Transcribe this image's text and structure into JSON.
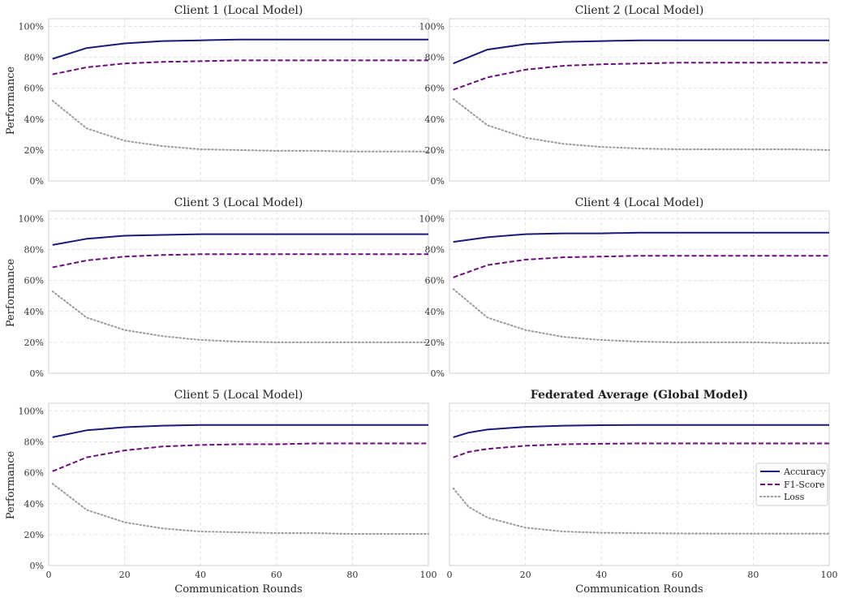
{
  "chart_data": [
    {
      "type": "line",
      "title": "Client 1 (Local Model)",
      "xlabel": "",
      "ylabel": "Performance",
      "xlim": [
        0,
        100
      ],
      "ylim": [
        0,
        1.05
      ],
      "x_ticks": [
        0,
        20,
        40,
        60,
        80,
        100
      ],
      "y_ticks": [
        0,
        0.2,
        0.4,
        0.6,
        0.8,
        1.0
      ],
      "y_tick_labels": [
        "0%",
        "20%",
        "40%",
        "60%",
        "80%",
        "100%"
      ],
      "grid": true,
      "series": [
        {
          "name": "Accuracy",
          "x": [
            1,
            10,
            20,
            30,
            40,
            50,
            60,
            70,
            80,
            90,
            100
          ],
          "values": [
            0.79,
            0.86,
            0.89,
            0.905,
            0.91,
            0.915,
            0.915,
            0.915,
            0.915,
            0.915,
            0.915
          ]
        },
        {
          "name": "F1-Score",
          "x": [
            1,
            10,
            20,
            30,
            40,
            50,
            60,
            70,
            80,
            90,
            100
          ],
          "values": [
            0.69,
            0.735,
            0.76,
            0.77,
            0.775,
            0.78,
            0.78,
            0.78,
            0.78,
            0.78,
            0.78
          ]
        },
        {
          "name": "Loss",
          "x": [
            1,
            10,
            20,
            30,
            40,
            50,
            60,
            70,
            80,
            90,
            100
          ],
          "values": [
            0.52,
            0.34,
            0.26,
            0.225,
            0.205,
            0.2,
            0.195,
            0.195,
            0.19,
            0.19,
            0.19
          ]
        }
      ]
    },
    {
      "type": "line",
      "title": "Client 2 (Local Model)",
      "xlabel": "",
      "ylabel": "",
      "xlim": [
        0,
        100
      ],
      "ylim": [
        0,
        1.05
      ],
      "x_ticks": [
        0,
        20,
        40,
        60,
        80,
        100
      ],
      "y_ticks": [
        0,
        0.2,
        0.4,
        0.6,
        0.8,
        1.0
      ],
      "y_tick_labels": [
        "0%",
        "20%",
        "40%",
        "60%",
        "80%",
        "100%"
      ],
      "grid": true,
      "series": [
        {
          "name": "Accuracy",
          "x": [
            1,
            10,
            20,
            30,
            40,
            50,
            60,
            70,
            80,
            90,
            100
          ],
          "values": [
            0.76,
            0.85,
            0.885,
            0.9,
            0.905,
            0.91,
            0.91,
            0.91,
            0.91,
            0.91,
            0.91
          ]
        },
        {
          "name": "F1-Score",
          "x": [
            1,
            10,
            20,
            30,
            40,
            50,
            60,
            70,
            80,
            90,
            100
          ],
          "values": [
            0.59,
            0.67,
            0.72,
            0.745,
            0.755,
            0.76,
            0.765,
            0.765,
            0.765,
            0.765,
            0.765
          ]
        },
        {
          "name": "Loss",
          "x": [
            1,
            10,
            20,
            30,
            40,
            50,
            60,
            70,
            80,
            90,
            100
          ],
          "values": [
            0.53,
            0.36,
            0.28,
            0.24,
            0.22,
            0.21,
            0.205,
            0.205,
            0.205,
            0.205,
            0.2
          ]
        }
      ]
    },
    {
      "type": "line",
      "title": "Client 3 (Local Model)",
      "xlabel": "",
      "ylabel": "Performance",
      "xlim": [
        0,
        100
      ],
      "ylim": [
        0,
        1.05
      ],
      "x_ticks": [
        0,
        20,
        40,
        60,
        80,
        100
      ],
      "y_ticks": [
        0,
        0.2,
        0.4,
        0.6,
        0.8,
        1.0
      ],
      "y_tick_labels": [
        "0%",
        "20%",
        "40%",
        "60%",
        "80%",
        "100%"
      ],
      "grid": true,
      "series": [
        {
          "name": "Accuracy",
          "x": [
            1,
            10,
            20,
            30,
            40,
            50,
            60,
            70,
            80,
            90,
            100
          ],
          "values": [
            0.83,
            0.87,
            0.89,
            0.895,
            0.9,
            0.9,
            0.9,
            0.9,
            0.9,
            0.9,
            0.9
          ]
        },
        {
          "name": "F1-Score",
          "x": [
            1,
            10,
            20,
            30,
            40,
            50,
            60,
            70,
            80,
            90,
            100
          ],
          "values": [
            0.685,
            0.73,
            0.755,
            0.765,
            0.77,
            0.77,
            0.77,
            0.77,
            0.77,
            0.77,
            0.77
          ]
        },
        {
          "name": "Loss",
          "x": [
            1,
            10,
            20,
            30,
            40,
            50,
            60,
            70,
            80,
            90,
            100
          ],
          "values": [
            0.53,
            0.36,
            0.28,
            0.24,
            0.215,
            0.205,
            0.2,
            0.2,
            0.2,
            0.2,
            0.2
          ]
        }
      ]
    },
    {
      "type": "line",
      "title": "Client 4 (Local Model)",
      "xlabel": "",
      "ylabel": "",
      "xlim": [
        0,
        100
      ],
      "ylim": [
        0,
        1.05
      ],
      "x_ticks": [
        0,
        20,
        40,
        60,
        80,
        100
      ],
      "y_ticks": [
        0,
        0.2,
        0.4,
        0.6,
        0.8,
        1.0
      ],
      "y_tick_labels": [
        "0%",
        "20%",
        "40%",
        "60%",
        "80%",
        "100%"
      ],
      "grid": true,
      "series": [
        {
          "name": "Accuracy",
          "x": [
            1,
            10,
            20,
            30,
            40,
            50,
            60,
            70,
            80,
            90,
            100
          ],
          "values": [
            0.85,
            0.88,
            0.9,
            0.905,
            0.905,
            0.91,
            0.91,
            0.91,
            0.91,
            0.91,
            0.91
          ]
        },
        {
          "name": "F1-Score",
          "x": [
            1,
            10,
            20,
            30,
            40,
            50,
            60,
            70,
            80,
            90,
            100
          ],
          "values": [
            0.62,
            0.7,
            0.735,
            0.75,
            0.755,
            0.76,
            0.76,
            0.76,
            0.76,
            0.76,
            0.76
          ]
        },
        {
          "name": "Loss",
          "x": [
            1,
            10,
            20,
            30,
            40,
            50,
            60,
            70,
            80,
            90,
            100
          ],
          "values": [
            0.545,
            0.36,
            0.28,
            0.235,
            0.215,
            0.205,
            0.2,
            0.2,
            0.2,
            0.195,
            0.195
          ]
        }
      ]
    },
    {
      "type": "line",
      "title": "Client 5 (Local Model)",
      "xlabel": "Communication Rounds",
      "ylabel": "Performance",
      "xlim": [
        0,
        100
      ],
      "ylim": [
        0,
        1.05
      ],
      "x_ticks": [
        0,
        20,
        40,
        60,
        80,
        100
      ],
      "x_tick_labels": [
        "0",
        "20",
        "40",
        "60",
        "80",
        "100"
      ],
      "y_ticks": [
        0,
        0.2,
        0.4,
        0.6,
        0.8,
        1.0
      ],
      "y_tick_labels": [
        "0%",
        "20%",
        "40%",
        "60%",
        "80%",
        "100%"
      ],
      "grid": true,
      "series": [
        {
          "name": "Accuracy",
          "x": [
            1,
            10,
            20,
            30,
            40,
            50,
            60,
            70,
            80,
            90,
            100
          ],
          "values": [
            0.83,
            0.875,
            0.895,
            0.905,
            0.91,
            0.91,
            0.91,
            0.91,
            0.91,
            0.91,
            0.91
          ]
        },
        {
          "name": "F1-Score",
          "x": [
            1,
            10,
            20,
            30,
            40,
            50,
            60,
            70,
            80,
            90,
            100
          ],
          "values": [
            0.61,
            0.7,
            0.745,
            0.77,
            0.78,
            0.785,
            0.785,
            0.79,
            0.79,
            0.79,
            0.79
          ]
        },
        {
          "name": "Loss",
          "x": [
            1,
            10,
            20,
            30,
            40,
            50,
            60,
            70,
            80,
            90,
            100
          ],
          "values": [
            0.53,
            0.36,
            0.28,
            0.24,
            0.22,
            0.215,
            0.21,
            0.21,
            0.205,
            0.205,
            0.205
          ]
        }
      ]
    },
    {
      "type": "line",
      "title": "Federated Average (Global Model)",
      "xlabel": "Communication Rounds",
      "ylabel": "",
      "xlim": [
        0,
        100
      ],
      "ylim": [
        0,
        1.05
      ],
      "x_ticks": [
        0,
        20,
        40,
        60,
        80,
        100
      ],
      "x_tick_labels": [
        "0",
        "20",
        "40",
        "60",
        "80",
        "100"
      ],
      "y_ticks": [
        0,
        0.2,
        0.4,
        0.6,
        0.8,
        1.0
      ],
      "grid": true,
      "legend": "center-right",
      "series": [
        {
          "name": "Accuracy",
          "x": [
            1,
            5,
            10,
            20,
            30,
            40,
            50,
            60,
            70,
            80,
            90,
            100
          ],
          "values": [
            0.83,
            0.86,
            0.88,
            0.897,
            0.905,
            0.908,
            0.91,
            0.91,
            0.91,
            0.91,
            0.91,
            0.91
          ]
        },
        {
          "name": "F1-Score",
          "x": [
            1,
            5,
            10,
            20,
            30,
            40,
            50,
            60,
            70,
            80,
            90,
            100
          ],
          "values": [
            0.7,
            0.735,
            0.755,
            0.775,
            0.785,
            0.788,
            0.79,
            0.79,
            0.79,
            0.79,
            0.79,
            0.79
          ]
        },
        {
          "name": "Loss",
          "x": [
            1,
            5,
            10,
            20,
            30,
            40,
            50,
            60,
            70,
            80,
            90,
            100
          ],
          "values": [
            0.5,
            0.38,
            0.31,
            0.245,
            0.22,
            0.212,
            0.21,
            0.208,
            0.207,
            0.207,
            0.207,
            0.207
          ]
        }
      ]
    }
  ],
  "series_styles": {
    "Accuracy": {
      "color": "#1a1a7a",
      "style": "solid"
    },
    "F1-Score": {
      "color": "#6a0f7a",
      "style": "dashed"
    },
    "Loss": {
      "color": "#9a9a9a",
      "style": "dotted"
    }
  },
  "legend_items": [
    "Accuracy",
    "F1-Score",
    "Loss"
  ]
}
